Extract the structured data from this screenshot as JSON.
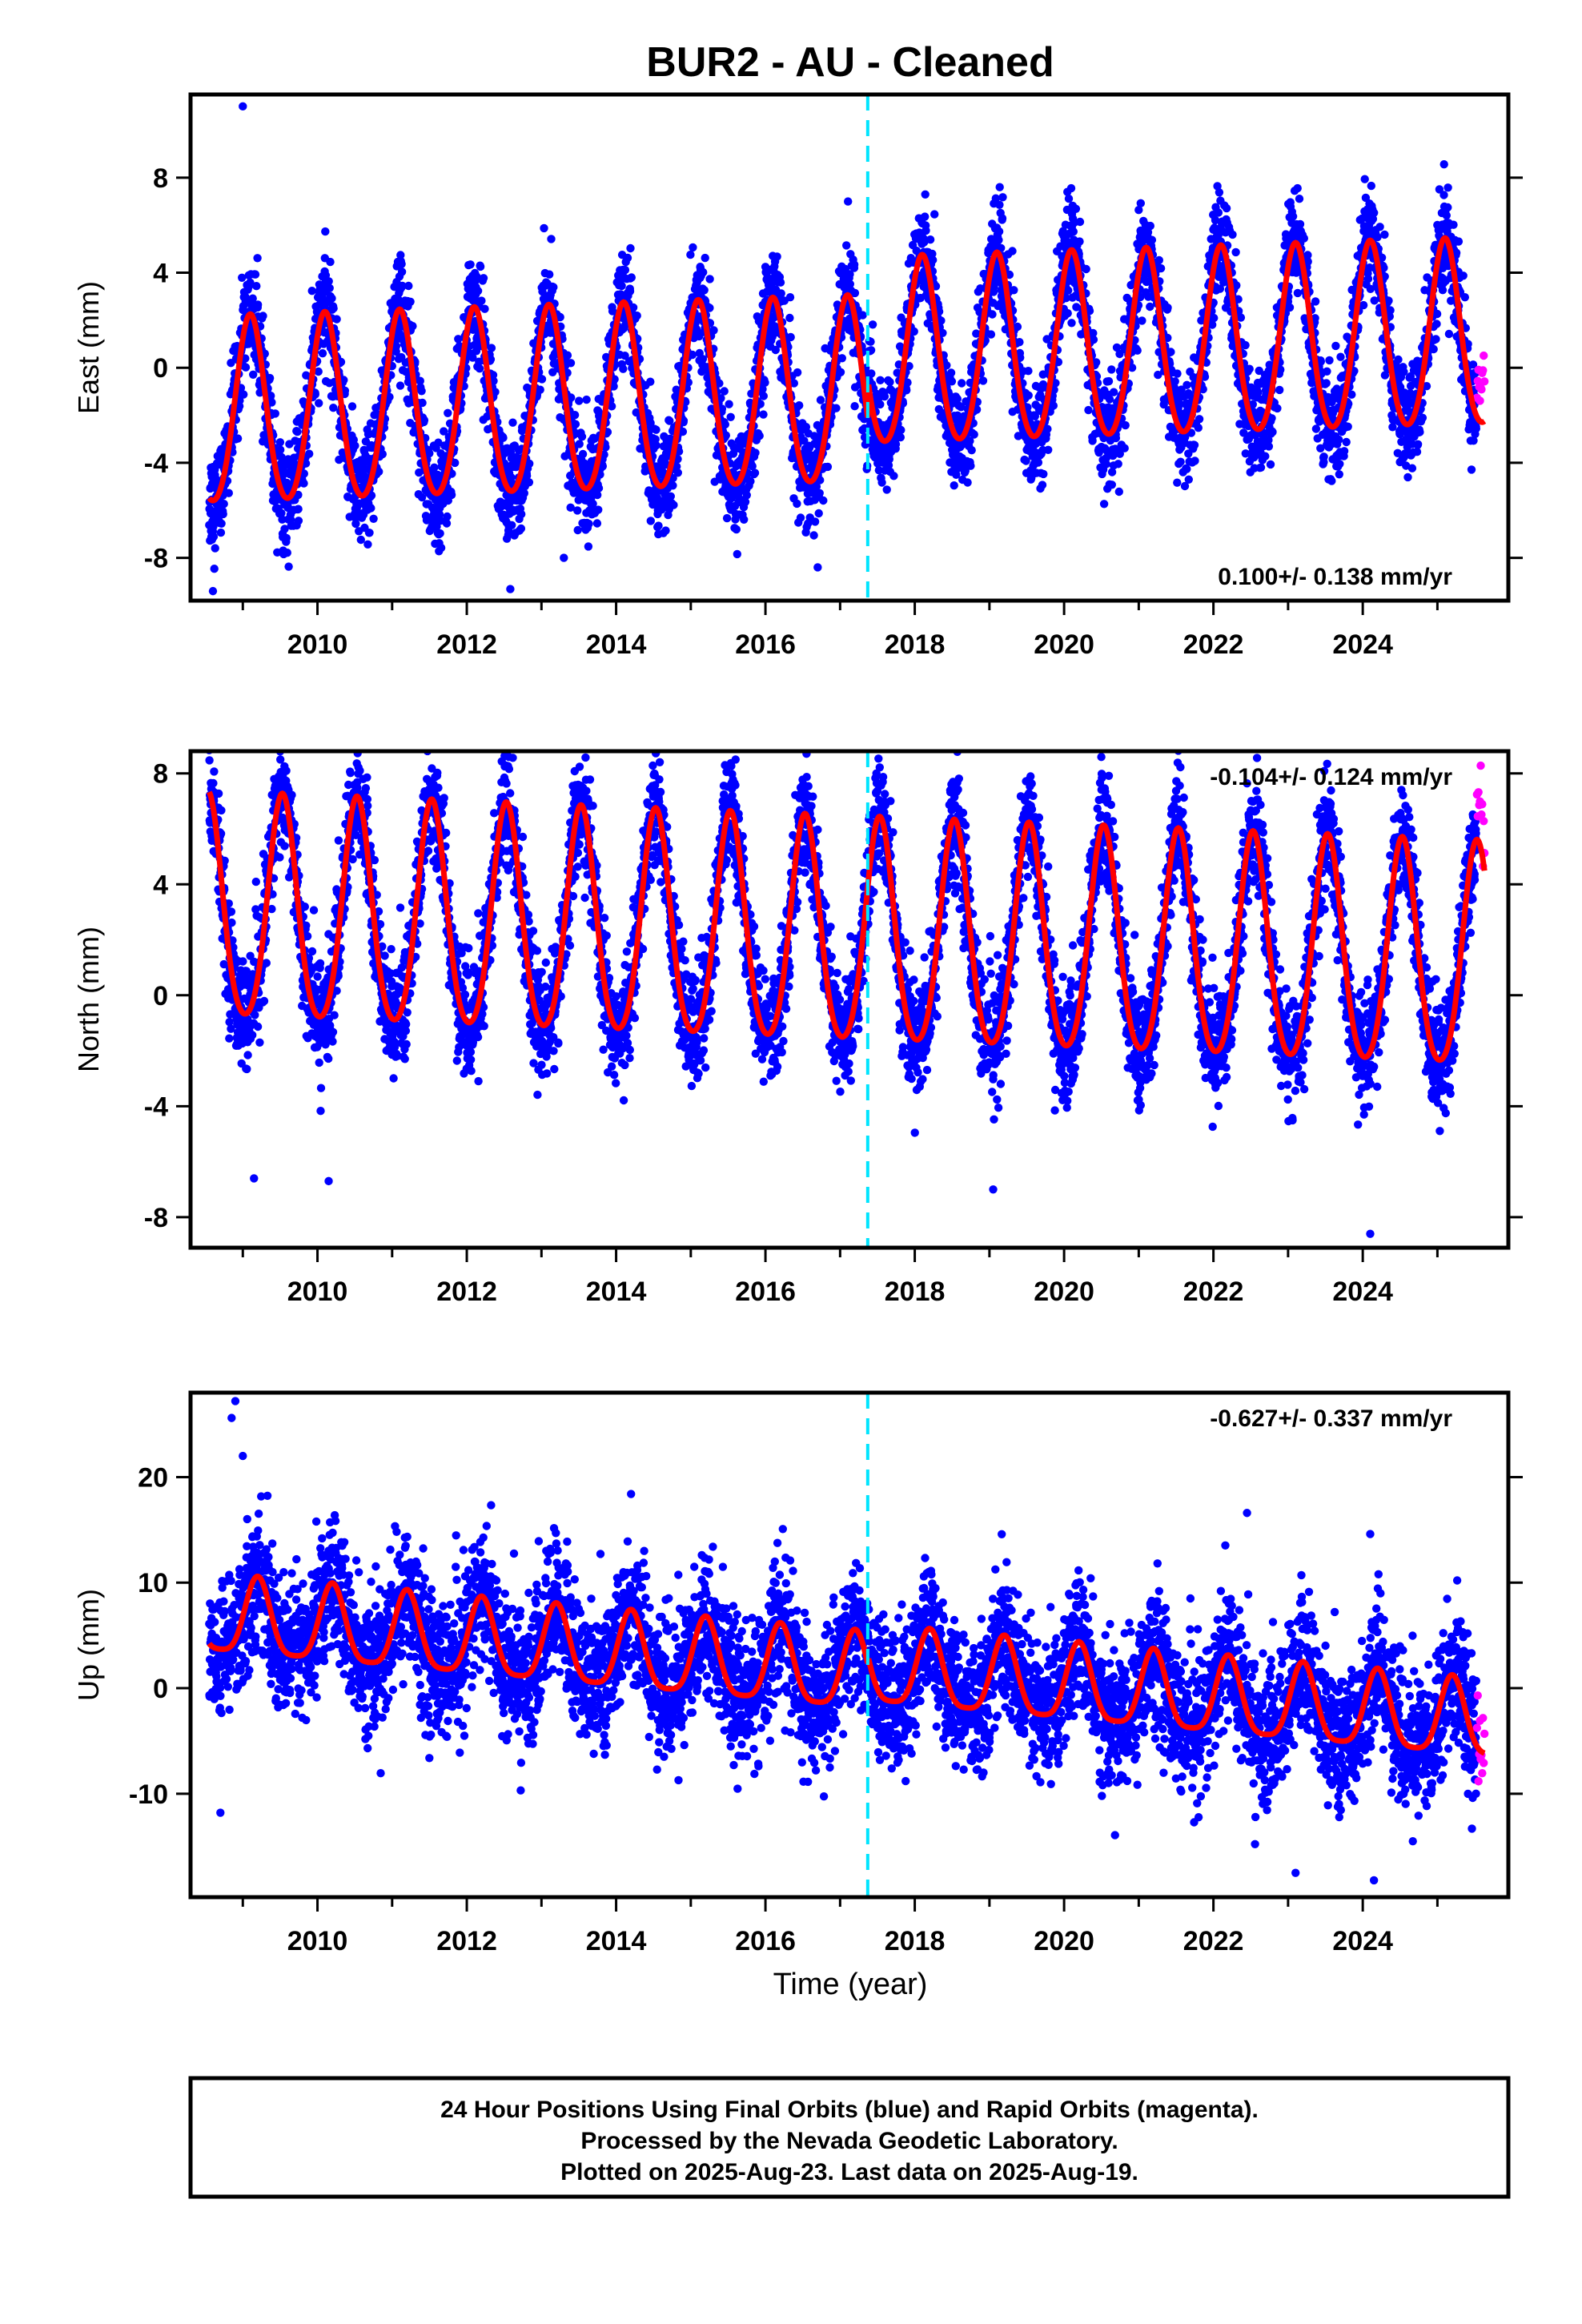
{
  "title": "BUR2  - AU - Cleaned",
  "x_axis_label": "Time (year)",
  "footer": {
    "line1": "24 Hour Positions Using Final Orbits (blue) and Rapid Orbits (magenta).",
    "line2": "Processed by the Nevada Geodetic Laboratory.",
    "line3": "Plotted on 2025-Aug-23. Last data on 2025-Aug-19."
  },
  "colors": {
    "final_orbits": "#0000ff",
    "rapid_orbits": "#ff00ff",
    "model_fit": "#ff0000",
    "equipment_change": "#00e5ff",
    "frame": "#000000"
  },
  "chart_data": [
    {
      "type": "scatter",
      "panel": "east",
      "ylabel": "East (mm)",
      "xlim": [
        2008.3,
        2025.95
      ],
      "ylim": [
        -9.8,
        11.5
      ],
      "xticks": [
        2010,
        2012,
        2014,
        2016,
        2018,
        2020,
        2022,
        2024
      ],
      "yticks": [
        -8,
        -4,
        0,
        4,
        8
      ],
      "rate_label": "0.100+/- 0.138 mm/yr",
      "rate_position": "bottom-right",
      "equipment_change_year": 2017.37,
      "data_start": 2008.55,
      "final_end": 2025.52,
      "rapid_end": 2025.63,
      "fit": {
        "offset_before": -1.25,
        "offset_after": 0.35,
        "trend_mm_per_yr": 0.1,
        "annual_amplitude": 3.9,
        "annual_peak_phase": 0.1,
        "semiannual_amplitude": 0.4,
        "noise_mm": 1.1
      },
      "outliers": [
        [
          2009.0,
          11.0
        ],
        [
          2008.6,
          -9.4
        ],
        [
          2016.7,
          -8.4
        ],
        [
          2013.3,
          -8.0
        ]
      ]
    },
    {
      "type": "scatter",
      "panel": "north",
      "ylabel": "North (mm)",
      "xlim": [
        2008.3,
        2025.95
      ],
      "ylim": [
        -9.1,
        8.8
      ],
      "xticks": [
        2010,
        2012,
        2014,
        2016,
        2018,
        2020,
        2022,
        2024
      ],
      "yticks": [
        -8,
        -4,
        0,
        4,
        8
      ],
      "rate_label": "-0.104+/- 0.124 mm/yr",
      "rate_position": "top-right",
      "equipment_change_year": null,
      "data_start": 2008.55,
      "final_end": 2025.52,
      "rapid_end": 2025.63,
      "fit": {
        "offset_before": 2.0,
        "offset_after": 0.5,
        "trend_mm_per_yr": -0.104,
        "annual_amplitude": 4.0,
        "annual_peak_phase": 0.53,
        "semiannual_amplitude": 0.5,
        "noise_mm": 1.0
      },
      "outliers": [
        [
          2009.15,
          -6.6
        ],
        [
          2010.15,
          -6.7
        ],
        [
          2015.6,
          8.5
        ],
        [
          2024.1,
          -8.6
        ],
        [
          2019.05,
          -7.0
        ]
      ]
    },
    {
      "type": "scatter",
      "panel": "up",
      "ylabel": "Up (mm)",
      "xlim": [
        2008.3,
        2025.95
      ],
      "ylim": [
        -19.8,
        28.0
      ],
      "xticks": [
        2010,
        2012,
        2014,
        2016,
        2018,
        2020,
        2022,
        2024
      ],
      "yticks": [
        -10,
        0,
        10,
        20
      ],
      "rate_label": "-0.627+/- 0.337 mm/yr",
      "rate_position": "top-right",
      "equipment_change_year": 2017.37,
      "data_start": 2008.55,
      "final_end": 2025.52,
      "rapid_end": 2025.63,
      "fit": {
        "offset_before": 1.3,
        "offset_after": 2.0,
        "trend_mm_per_yr": -0.627,
        "annual_amplitude": 3.6,
        "annual_peak_phase": 0.2,
        "semiannual_amplitude": 0.8,
        "noise_mm": 3.2
      },
      "outliers": [
        [
          2008.9,
          27.2
        ],
        [
          2008.85,
          25.6
        ],
        [
          2009.0,
          22.0
        ],
        [
          2022.45,
          16.6
        ],
        [
          2024.1,
          14.6
        ],
        [
          2014.2,
          18.4
        ],
        [
          2008.7,
          -11.8
        ],
        [
          2023.1,
          -17.5
        ],
        [
          2024.15,
          -18.2
        ]
      ]
    }
  ]
}
